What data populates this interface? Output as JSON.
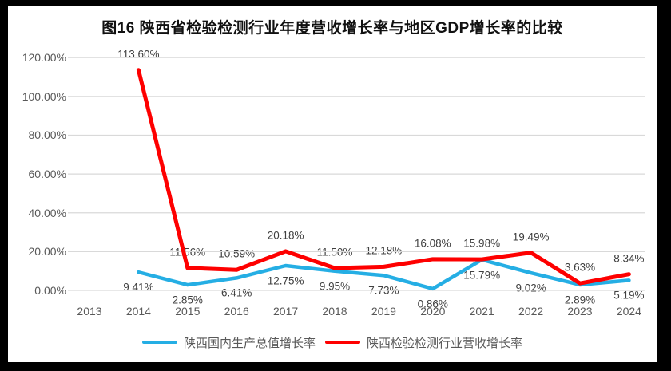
{
  "title": "图16  陕西省检验检测行业年度营收增长率与地区GDP增长率的比较",
  "colors": {
    "frame_background": "#000000",
    "card_background": "#ffffff",
    "gridline": "#d9d9d9",
    "axis_text": "#595959",
    "data_label_text": "#404040",
    "title_text": "#111111",
    "gdp_line": "#25aee4",
    "industry_line": "#fe0000"
  },
  "chart_data": {
    "type": "line",
    "title": "图16  陕西省检验检测行业年度营收增长率与地区GDP增长率的比较",
    "categories": [
      "2013",
      "2014",
      "2015",
      "2016",
      "2017",
      "2018",
      "2019",
      "2020",
      "2021",
      "2022",
      "2023",
      "2024"
    ],
    "series": [
      {
        "name": "陕西国内生产总值增长率",
        "color": "#25aee4",
        "values": [
          null,
          9.41,
          2.85,
          6.41,
          12.75,
          9.95,
          7.73,
          0.86,
          15.79,
          9.02,
          2.89,
          5.19
        ],
        "label_position": "below"
      },
      {
        "name": "陕西检验检测行业营收增长率",
        "color": "#fe0000",
        "values": [
          null,
          113.6,
          11.56,
          10.59,
          20.18,
          11.5,
          12.18,
          16.08,
          15.98,
          19.49,
          3.63,
          8.34
        ],
        "label_position": "above"
      }
    ],
    "y_ticks": [
      "120.00%",
      "100.00%",
      "80.00%",
      "60.00%",
      "40.00%",
      "20.00%",
      "0.00%"
    ],
    "ylim": [
      0,
      120
    ],
    "y_step": 20,
    "grid": true,
    "legend_position": "bottom",
    "data_label_format": "0.00%"
  }
}
